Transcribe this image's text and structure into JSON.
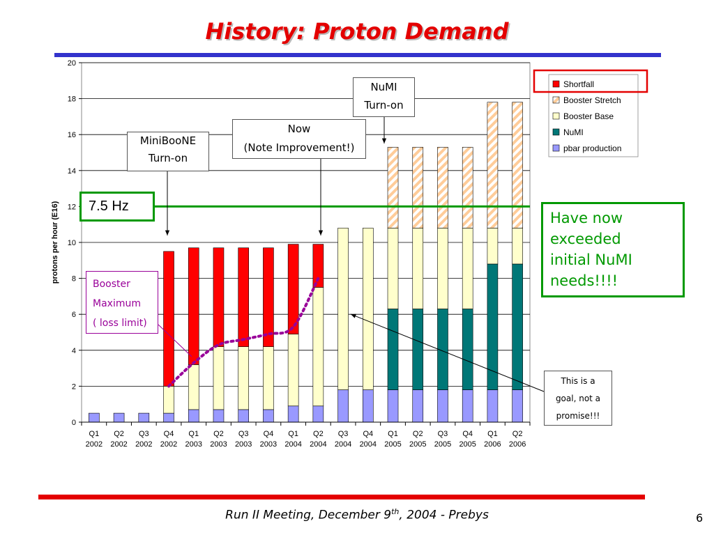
{
  "slide": {
    "title": "History: Proton Demand",
    "footer_main": "Run II Meeting, December 9",
    "footer_sup": "th",
    "footer_rest": ", 2004  - Prebys",
    "page_number": "6",
    "colors": {
      "title": "#e40000",
      "top_rule": "#3333cc",
      "bottom_rule": "#e40000"
    }
  },
  "annotations": {
    "miniboone_line1": "MiniBooNE",
    "miniboone_line2": "Turn-on",
    "now_line1": "Now",
    "now_line2": "(Note Improvement!)",
    "numi_line1": "NuMI",
    "numi_line2": "Turn-on",
    "hz_label": "7.5 Hz",
    "exceeded_line1": "Have now",
    "exceeded_line2": "exceeded",
    "exceeded_line3": "initial NuMI",
    "exceeded_line4": "needs!!!!",
    "booster_line1": "Booster",
    "booster_line2": "Maximum",
    "booster_line3": "( loss limit)",
    "goal_line1": "This is a",
    "goal_line2": "goal, not a",
    "goal_line3": "promise!!!"
  },
  "chart_data": {
    "type": "bar",
    "stacked": true,
    "ylabel": "protons per hour (E16)",
    "xlabel": "",
    "ylim": [
      0,
      20
    ],
    "yticks": [
      0,
      2,
      4,
      6,
      8,
      10,
      12,
      14,
      16,
      18,
      20
    ],
    "grid": true,
    "legend_position": "top-right",
    "categories": [
      [
        "Q1",
        "2002"
      ],
      [
        "Q2",
        "2002"
      ],
      [
        "Q3",
        "2002"
      ],
      [
        "Q4",
        "2002"
      ],
      [
        "Q1",
        "2003"
      ],
      [
        "Q2",
        "2003"
      ],
      [
        "Q3",
        "2003"
      ],
      [
        "Q4",
        "2003"
      ],
      [
        "Q1",
        "2004"
      ],
      [
        "Q2",
        "2004"
      ],
      [
        "Q3",
        "2004"
      ],
      [
        "Q4",
        "2004"
      ],
      [
        "Q1",
        "2005"
      ],
      [
        "Q2",
        "2005"
      ],
      [
        "Q3",
        "2005"
      ],
      [
        "Q4",
        "2005"
      ],
      [
        "Q1",
        "2006"
      ],
      [
        "Q2",
        "2006"
      ]
    ],
    "series": [
      {
        "name": "pbar production",
        "color": "#9999ff",
        "pattern": "solid",
        "values": [
          0.5,
          0.5,
          0.5,
          0.5,
          0.7,
          0.7,
          0.7,
          0.7,
          0.9,
          0.9,
          1.8,
          1.8,
          1.8,
          1.8,
          1.8,
          1.8,
          1.8,
          1.8
        ]
      },
      {
        "name": "NuMI",
        "color": "#007777",
        "pattern": "solid",
        "values": [
          0,
          0,
          0,
          0,
          0,
          0,
          0,
          0,
          0,
          0,
          0,
          0,
          4.5,
          4.5,
          4.5,
          4.5,
          7.0,
          7.0
        ]
      },
      {
        "name": "Booster Base",
        "color": "#ffffcc",
        "pattern": "solid",
        "values": [
          0,
          0,
          0,
          1.5,
          2.5,
          3.5,
          3.5,
          3.5,
          4.0,
          6.6,
          9.0,
          9.0,
          4.5,
          4.5,
          4.5,
          4.5,
          2.0,
          2.0
        ]
      },
      {
        "name": "Booster Stretch",
        "color": "#ffcc99",
        "pattern": "hatched",
        "values": [
          0,
          0,
          0,
          0,
          0,
          0,
          0,
          0,
          0,
          0,
          0,
          0,
          4.5,
          4.5,
          4.5,
          4.5,
          7.0,
          7.0
        ]
      },
      {
        "name": "Shortfall",
        "color": "#ff0000",
        "pattern": "solid",
        "values": [
          0,
          0,
          0,
          7.5,
          6.5,
          5.5,
          5.5,
          5.5,
          5.0,
          2.4,
          0,
          0,
          0,
          0,
          0,
          0,
          0,
          0
        ]
      }
    ],
    "legend_order": [
      "Shortfall",
      "Booster Stretch",
      "Booster Base",
      "NuMI",
      "pbar production"
    ],
    "reference_line": {
      "label": "7.5 Hz",
      "y": 12,
      "color": "#009900"
    },
    "booster_maximum_curve": {
      "color": "#990099",
      "x_index": [
        3,
        4,
        5,
        6,
        7,
        8,
        9
      ],
      "y": [
        2.0,
        3.3,
        4.3,
        4.6,
        4.9,
        5.3,
        8.0
      ]
    }
  }
}
